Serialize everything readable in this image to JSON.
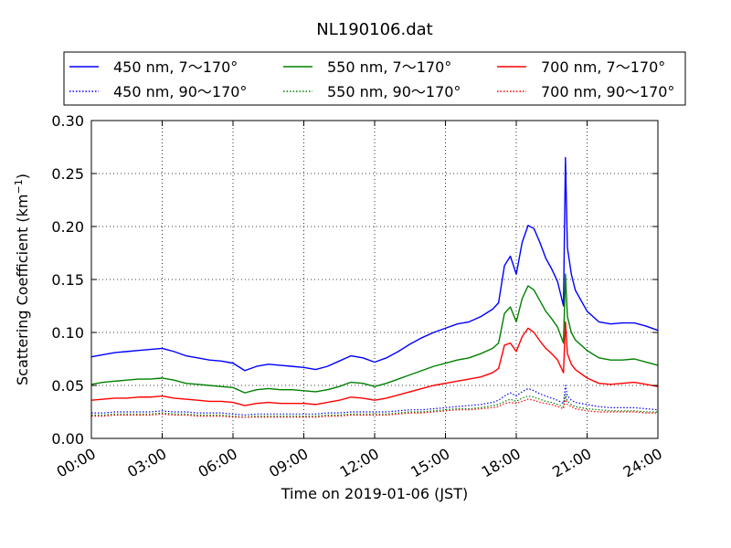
{
  "chart_data": {
    "type": "line",
    "title": "NL190106.dat",
    "xlabel": "Time on 2019-01-06 (JST)",
    "ylabel_main": "Scattering Coefficient (km",
    "ylabel_sup": "−1",
    "ylabel_close": ")",
    "xlim": [
      "00:00",
      "24:00"
    ],
    "ylim": [
      0.0,
      0.3
    ],
    "x_ticks": [
      "00:00",
      "03:00",
      "06:00",
      "09:00",
      "12:00",
      "15:00",
      "18:00",
      "21:00",
      "24:00"
    ],
    "y_ticks": [
      "0.00",
      "0.05",
      "0.10",
      "0.15",
      "0.20",
      "0.25",
      "0.30"
    ],
    "grid": true,
    "legend_position": "top",
    "x": [
      "00:00",
      "00:30",
      "01:00",
      "01:30",
      "02:00",
      "02:30",
      "03:00",
      "03:30",
      "04:00",
      "04:30",
      "05:00",
      "05:30",
      "06:00",
      "06:30",
      "07:00",
      "07:30",
      "08:00",
      "08:30",
      "09:00",
      "09:30",
      "10:00",
      "10:30",
      "11:00",
      "11:30",
      "12:00",
      "12:30",
      "13:00",
      "13:30",
      "14:00",
      "14:30",
      "15:00",
      "15:30",
      "16:00",
      "16:30",
      "17:00",
      "17:15",
      "17:30",
      "17:45",
      "18:00",
      "18:15",
      "18:30",
      "18:45",
      "19:00",
      "19:15",
      "19:30",
      "19:45",
      "20:00",
      "20:05",
      "20:10",
      "20:20",
      "20:30",
      "21:00",
      "21:30",
      "22:00",
      "22:30",
      "23:00",
      "23:30",
      "24:00"
    ],
    "series": [
      {
        "name": "450 nm, 7～170°",
        "color": "#0000ff",
        "style": "solid",
        "values": [
          0.077,
          0.079,
          0.081,
          0.082,
          0.083,
          0.084,
          0.085,
          0.082,
          0.078,
          0.076,
          0.074,
          0.073,
          0.071,
          0.064,
          0.068,
          0.07,
          0.069,
          0.068,
          0.067,
          0.065,
          0.068,
          0.073,
          0.078,
          0.076,
          0.072,
          0.076,
          0.082,
          0.089,
          0.095,
          0.1,
          0.104,
          0.108,
          0.11,
          0.115,
          0.122,
          0.128,
          0.163,
          0.172,
          0.155,
          0.185,
          0.201,
          0.198,
          0.185,
          0.17,
          0.16,
          0.148,
          0.125,
          0.265,
          0.18,
          0.155,
          0.14,
          0.12,
          0.11,
          0.108,
          0.109,
          0.109,
          0.106,
          0.102
        ]
      },
      {
        "name": "450 nm, 90～170°",
        "color": "#0000ff",
        "style": "dotted",
        "values": [
          0.024,
          0.024,
          0.025,
          0.025,
          0.025,
          0.025,
          0.026,
          0.025,
          0.025,
          0.024,
          0.024,
          0.024,
          0.023,
          0.022,
          0.023,
          0.023,
          0.023,
          0.023,
          0.023,
          0.023,
          0.024,
          0.024,
          0.025,
          0.025,
          0.025,
          0.025,
          0.026,
          0.027,
          0.027,
          0.028,
          0.029,
          0.03,
          0.031,
          0.032,
          0.034,
          0.036,
          0.04,
          0.043,
          0.04,
          0.044,
          0.047,
          0.045,
          0.042,
          0.04,
          0.038,
          0.036,
          0.033,
          0.05,
          0.04,
          0.036,
          0.034,
          0.032,
          0.03,
          0.029,
          0.029,
          0.029,
          0.028,
          0.027
        ]
      },
      {
        "name": "550 nm, 7～170°",
        "color": "#008000",
        "style": "solid",
        "values": [
          0.051,
          0.053,
          0.054,
          0.055,
          0.056,
          0.056,
          0.057,
          0.055,
          0.052,
          0.051,
          0.05,
          0.049,
          0.048,
          0.043,
          0.046,
          0.047,
          0.046,
          0.046,
          0.045,
          0.044,
          0.046,
          0.049,
          0.053,
          0.052,
          0.049,
          0.052,
          0.056,
          0.06,
          0.064,
          0.068,
          0.071,
          0.074,
          0.076,
          0.08,
          0.085,
          0.09,
          0.118,
          0.124,
          0.11,
          0.132,
          0.144,
          0.14,
          0.13,
          0.12,
          0.113,
          0.105,
          0.09,
          0.155,
          0.115,
          0.1,
          0.093,
          0.083,
          0.076,
          0.074,
          0.074,
          0.075,
          0.072,
          0.069
        ]
      },
      {
        "name": "550 nm, 90～170°",
        "color": "#008000",
        "style": "dotted",
        "values": [
          0.022,
          0.022,
          0.023,
          0.023,
          0.023,
          0.023,
          0.024,
          0.023,
          0.023,
          0.022,
          0.022,
          0.022,
          0.021,
          0.02,
          0.021,
          0.021,
          0.021,
          0.021,
          0.021,
          0.021,
          0.022,
          0.022,
          0.023,
          0.023,
          0.023,
          0.023,
          0.024,
          0.025,
          0.025,
          0.026,
          0.027,
          0.028,
          0.028,
          0.029,
          0.031,
          0.032,
          0.035,
          0.037,
          0.035,
          0.038,
          0.04,
          0.039,
          0.037,
          0.035,
          0.034,
          0.032,
          0.03,
          0.042,
          0.035,
          0.032,
          0.03,
          0.028,
          0.027,
          0.026,
          0.026,
          0.026,
          0.025,
          0.025
        ]
      },
      {
        "name": "700 nm, 7～170°",
        "color": "#ff0000",
        "style": "solid",
        "values": [
          0.036,
          0.037,
          0.038,
          0.038,
          0.039,
          0.039,
          0.04,
          0.038,
          0.037,
          0.036,
          0.035,
          0.035,
          0.034,
          0.031,
          0.033,
          0.034,
          0.033,
          0.033,
          0.033,
          0.032,
          0.034,
          0.036,
          0.039,
          0.038,
          0.036,
          0.038,
          0.041,
          0.044,
          0.047,
          0.05,
          0.052,
          0.054,
          0.056,
          0.058,
          0.062,
          0.066,
          0.088,
          0.09,
          0.082,
          0.096,
          0.104,
          0.1,
          0.092,
          0.085,
          0.08,
          0.074,
          0.062,
          0.11,
          0.08,
          0.07,
          0.065,
          0.057,
          0.052,
          0.051,
          0.052,
          0.053,
          0.051,
          0.049
        ]
      },
      {
        "name": "700 nm, 90～170°",
        "color": "#ff0000",
        "style": "dotted",
        "values": [
          0.021,
          0.021,
          0.022,
          0.022,
          0.022,
          0.022,
          0.023,
          0.022,
          0.022,
          0.021,
          0.021,
          0.021,
          0.02,
          0.02,
          0.02,
          0.02,
          0.02,
          0.02,
          0.02,
          0.02,
          0.021,
          0.021,
          0.022,
          0.022,
          0.022,
          0.022,
          0.023,
          0.024,
          0.024,
          0.025,
          0.026,
          0.027,
          0.027,
          0.028,
          0.029,
          0.03,
          0.033,
          0.034,
          0.033,
          0.035,
          0.037,
          0.036,
          0.034,
          0.033,
          0.032,
          0.03,
          0.028,
          0.038,
          0.032,
          0.03,
          0.028,
          0.026,
          0.025,
          0.025,
          0.025,
          0.025,
          0.024,
          0.024
        ]
      }
    ]
  }
}
